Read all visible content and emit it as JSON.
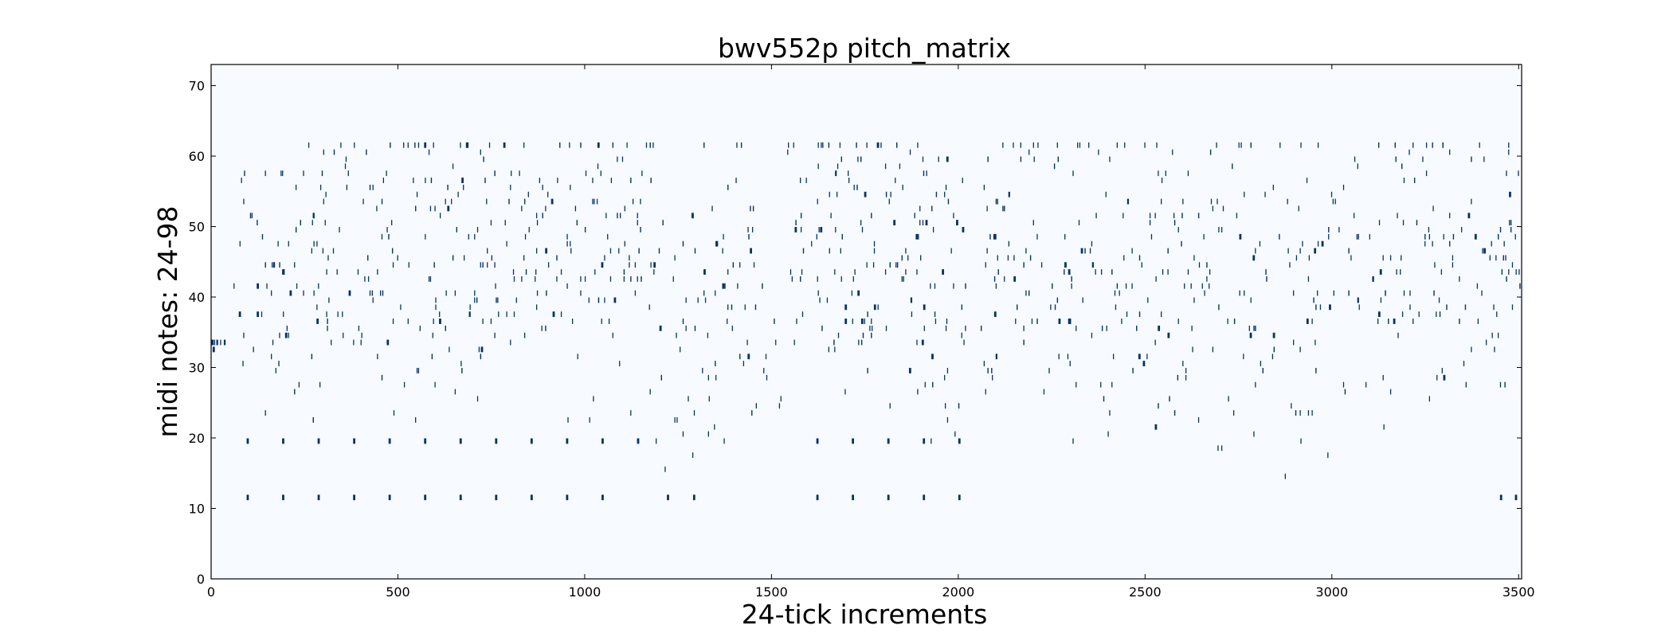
{
  "chart_data": {
    "type": "heatmap",
    "title": "bwv552p pitch_matrix",
    "xlabel": "24-tick increments",
    "ylabel": "midi notes: 24-98",
    "xlim": [
      0,
      3508
    ],
    "ylim": [
      0,
      73
    ],
    "x_ticks": [
      0,
      500,
      1000,
      1500,
      2000,
      2500,
      3000,
      3500
    ],
    "y_ticks": [
      0,
      10,
      20,
      30,
      40,
      50,
      60,
      70
    ],
    "grid": false,
    "legend": "none",
    "colors": {
      "background": "#f7fbff",
      "note": "#08306b"
    },
    "pitch_range_rows": [
      12,
      61
    ],
    "density_segments": [
      {
        "x": [
          0,
          40
        ],
        "pitch_low": 27,
        "pitch_high": 33,
        "density": 0.4
      },
      {
        "x": [
          60,
          260
        ],
        "pitch_low": 17,
        "pitch_high": 57,
        "density": 0.35
      },
      {
        "x": [
          260,
          1150
        ],
        "pitch_low": 22,
        "pitch_high": 61,
        "density": 0.4
      },
      {
        "x": [
          1150,
          1550
        ],
        "pitch_low": 14,
        "pitch_high": 61,
        "density": 0.3
      },
      {
        "x": [
          1550,
          2020
        ],
        "pitch_low": 19,
        "pitch_high": 61,
        "density": 0.45
      },
      {
        "x": [
          2060,
          2700
        ],
        "pitch_low": 18,
        "pitch_high": 61,
        "density": 0.38
      },
      {
        "x": [
          2700,
          3200
        ],
        "pitch_low": 14,
        "pitch_high": 61,
        "density": 0.35
      },
      {
        "x": [
          3200,
          3508
        ],
        "pitch_low": 21,
        "pitch_high": 61,
        "density": 0.45
      }
    ],
    "bass_pedal_notes": [
      {
        "x": 95,
        "pitch": 20
      },
      {
        "x": 190,
        "pitch": 20
      },
      {
        "x": 285,
        "pitch": 20
      },
      {
        "x": 380,
        "pitch": 20
      },
      {
        "x": 475,
        "pitch": 20
      },
      {
        "x": 570,
        "pitch": 20
      },
      {
        "x": 665,
        "pitch": 20
      },
      {
        "x": 760,
        "pitch": 20
      },
      {
        "x": 855,
        "pitch": 20
      },
      {
        "x": 950,
        "pitch": 20
      },
      {
        "x": 1045,
        "pitch": 20
      },
      {
        "x": 1140,
        "pitch": 20
      },
      {
        "x": 1620,
        "pitch": 20
      },
      {
        "x": 1715,
        "pitch": 20
      },
      {
        "x": 1810,
        "pitch": 20
      },
      {
        "x": 1905,
        "pitch": 20
      },
      {
        "x": 2000,
        "pitch": 20
      },
      {
        "x": 95,
        "pitch": 12
      },
      {
        "x": 190,
        "pitch": 12
      },
      {
        "x": 285,
        "pitch": 12
      },
      {
        "x": 380,
        "pitch": 12
      },
      {
        "x": 475,
        "pitch": 12
      },
      {
        "x": 570,
        "pitch": 12
      },
      {
        "x": 665,
        "pitch": 12
      },
      {
        "x": 760,
        "pitch": 12
      },
      {
        "x": 855,
        "pitch": 12
      },
      {
        "x": 950,
        "pitch": 12
      },
      {
        "x": 1045,
        "pitch": 12
      },
      {
        "x": 1220,
        "pitch": 12
      },
      {
        "x": 1290,
        "pitch": 12
      },
      {
        "x": 1620,
        "pitch": 12
      },
      {
        "x": 1715,
        "pitch": 12
      },
      {
        "x": 1810,
        "pitch": 12
      },
      {
        "x": 1905,
        "pitch": 12
      },
      {
        "x": 2000,
        "pitch": 12
      },
      {
        "x": 3450,
        "pitch": 12
      },
      {
        "x": 3490,
        "pitch": 12
      }
    ]
  }
}
